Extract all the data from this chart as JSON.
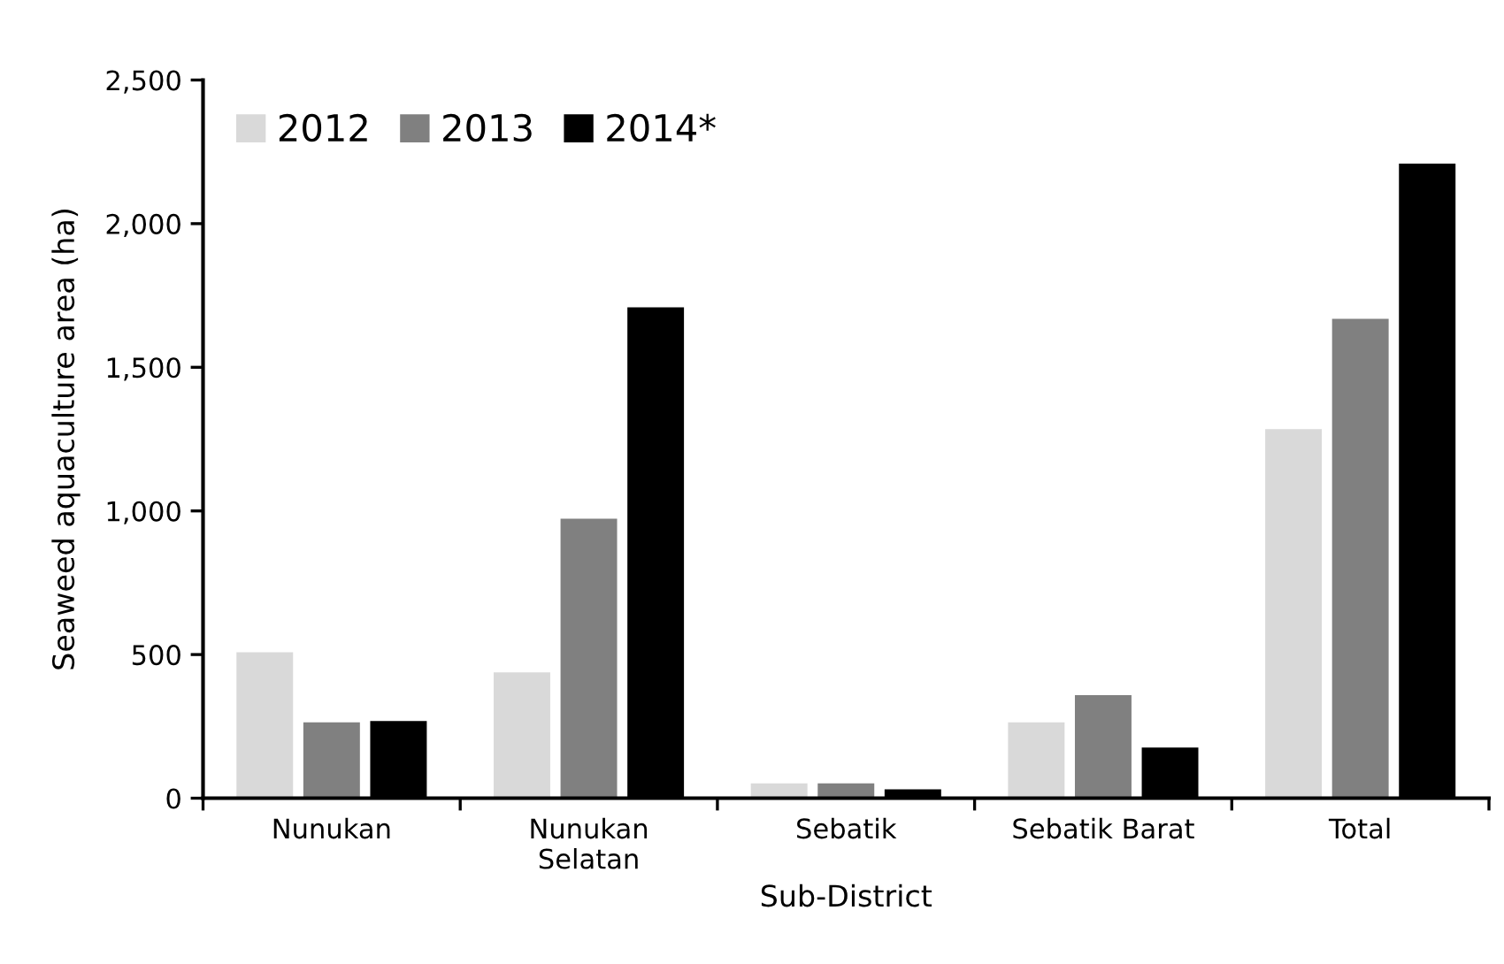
{
  "chart_data": {
    "type": "bar",
    "xlabel": "Sub-District",
    "ylabel": "Seaweed aquaculture area (ha)",
    "categories": [
      "Nunukan",
      "Nunukan\nSelatan",
      "Sebatik",
      "Sebatik Barat",
      "Total"
    ],
    "series": [
      {
        "name": "2012",
        "color": "#d9d9d9",
        "values": [
          508,
          438,
          52,
          264,
          1285
        ]
      },
      {
        "name": "2013",
        "color": "#808080",
        "values": [
          264,
          973,
          52,
          359,
          1669
        ]
      },
      {
        "name": "2014*",
        "color": "#000000",
        "values": [
          269,
          1709,
          31,
          176,
          2209
        ]
      }
    ],
    "ylim": [
      0,
      2500
    ],
    "yticks": [
      {
        "value": 0,
        "label": "0"
      },
      {
        "value": 500,
        "label": "500"
      },
      {
        "value": 1000,
        "label": "1,000"
      },
      {
        "value": 1500,
        "label": "1,500"
      },
      {
        "value": 2000,
        "label": "2,000"
      },
      {
        "value": 2500,
        "label": "2,500"
      }
    ],
    "grid": false,
    "legend": "top left"
  }
}
